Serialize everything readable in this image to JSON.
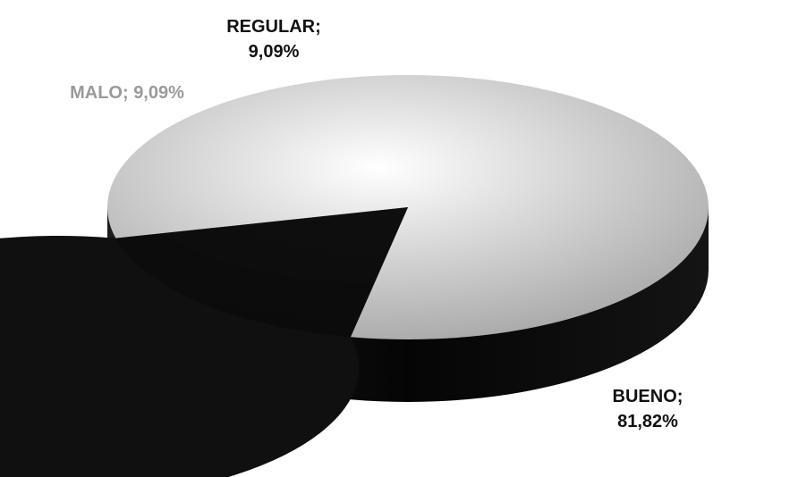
{
  "chart_data": {
    "type": "pie",
    "style": "3d",
    "categories": [
      "BUENO",
      "MALO",
      "REGULAR"
    ],
    "values": [
      81.82,
      9.09,
      9.09
    ],
    "labels": {
      "BUENO": {
        "line1": "BUENO;",
        "line2": "81,82%"
      },
      "MALO": {
        "line1": "MALO; 9,09%"
      },
      "REGULAR": {
        "line1": "REGULAR;",
        "line2": "9,09%"
      }
    },
    "colors": {
      "BUENO": "#101010",
      "MALO": "#8c8c8c",
      "REGULAR": "#1a1a1a",
      "side": "#080808"
    },
    "label_colors": {
      "BUENO": "#111111",
      "MALO": "#9a9a9a",
      "REGULAR": "#111111"
    },
    "legend": "none"
  }
}
